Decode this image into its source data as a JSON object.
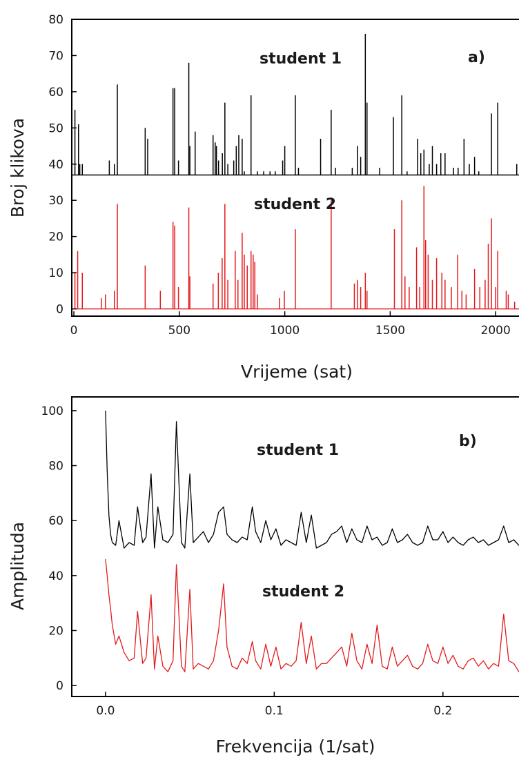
{
  "colors": {
    "student1": "#000000",
    "student2": "#e31a1c",
    "axis": "#000000"
  },
  "chart_data": [
    {
      "type": "bar",
      "panel_label": "a)",
      "xlabel": "Vrijeme (sat)",
      "ylabel": "Broj klikova",
      "xlim": [
        -10,
        2150
      ],
      "ylim": [
        -2,
        80
      ],
      "xticks": [
        0,
        500,
        1000,
        1500,
        2000
      ],
      "yticks": [
        0,
        10,
        20,
        30,
        40,
        50,
        60,
        70,
        80
      ],
      "grid": false,
      "series": [
        {
          "name": "student 1",
          "color": "#000000",
          "baseline": 37,
          "x": [
            5,
            22,
            28,
            40,
            168,
            192,
            206,
            338,
            350,
            470,
            478,
            496,
            545,
            550,
            575,
            660,
            670,
            676,
            686,
            704,
            716,
            730,
            758,
            770,
            782,
            798,
            808,
            840,
            870,
            900,
            930,
            955,
            990,
            1000,
            1050,
            1065,
            1170,
            1220,
            1240,
            1320,
            1345,
            1360,
            1382,
            1390,
            1450,
            1515,
            1555,
            1580,
            1630,
            1645,
            1660,
            1685,
            1700,
            1720,
            1740,
            1760,
            1800,
            1822,
            1850,
            1875,
            1900,
            1920,
            1980,
            2010,
            2100
          ],
          "values": [
            55,
            51,
            40,
            40,
            41,
            40,
            62,
            50,
            47,
            61,
            61,
            41,
            68,
            45,
            49,
            48,
            46,
            45,
            41,
            43,
            57,
            40,
            41,
            45,
            48,
            47,
            38,
            59,
            38,
            38,
            38,
            38,
            41,
            45,
            59,
            39,
            47,
            55,
            39,
            39,
            45,
            42,
            76,
            57,
            39,
            53,
            59,
            38,
            47,
            43,
            44,
            40,
            45,
            40,
            43,
            43,
            39,
            39,
            47,
            40,
            42,
            38,
            54,
            57,
            40
          ]
        },
        {
          "name": "student 2",
          "color": "#e31a1c",
          "baseline": 0,
          "x": [
            5,
            18,
            40,
            130,
            150,
            192,
            206,
            338,
            410,
            470,
            478,
            496,
            545,
            550,
            660,
            685,
            703,
            716,
            730,
            765,
            778,
            798,
            808,
            822,
            840,
            850,
            858,
            870,
            975,
            998,
            1050,
            1220,
            1330,
            1345,
            1360,
            1382,
            1390,
            1520,
            1555,
            1570,
            1590,
            1625,
            1640,
            1660,
            1668,
            1680,
            1700,
            1720,
            1745,
            1760,
            1790,
            1820,
            1840,
            1860,
            1900,
            1925,
            1950,
            1965,
            1980,
            2000,
            2010,
            2050,
            2060,
            2090,
            2120
          ],
          "values": [
            10,
            16,
            10,
            3,
            4,
            5,
            29,
            12,
            5,
            24,
            23,
            6,
            28,
            9,
            7,
            10,
            14,
            29,
            8,
            16,
            8,
            21,
            15,
            12,
            16,
            15,
            13,
            4,
            3,
            5,
            22,
            30,
            7,
            8,
            6,
            10,
            5,
            22,
            30,
            9,
            6,
            17,
            6,
            34,
            19,
            15,
            8,
            14,
            10,
            8,
            6,
            15,
            5,
            4,
            11,
            6,
            8,
            18,
            25,
            6,
            16,
            5,
            4,
            2,
            6
          ]
        }
      ],
      "annotations": [
        "student 1",
        "student 2"
      ]
    },
    {
      "type": "line",
      "panel_label": "b)",
      "xlabel": "Frekvencija (1/sat)",
      "ylabel": "Amplituda",
      "xlim": [
        -0.02,
        0.25
      ],
      "ylim": [
        -4,
        105
      ],
      "xticks": [
        0.0,
        0.1,
        0.2
      ],
      "xtick_labels": [
        "0.0",
        "0.1",
        "0.2"
      ],
      "yticks": [
        0,
        20,
        40,
        60,
        80,
        100
      ],
      "grid": false,
      "series": [
        {
          "name": "student 1",
          "color": "#000000",
          "x": [
            0.0,
            0.001,
            0.002,
            0.003,
            0.004,
            0.006,
            0.008,
            0.011,
            0.014,
            0.017,
            0.019,
            0.022,
            0.024,
            0.027,
            0.029,
            0.031,
            0.034,
            0.037,
            0.04,
            0.042,
            0.045,
            0.047,
            0.05,
            0.052,
            0.055,
            0.058,
            0.061,
            0.064,
            0.067,
            0.07,
            0.072,
            0.075,
            0.078,
            0.081,
            0.084,
            0.087,
            0.089,
            0.092,
            0.095,
            0.098,
            0.101,
            0.104,
            0.107,
            0.11,
            0.113,
            0.116,
            0.119,
            0.122,
            0.125,
            0.128,
            0.131,
            0.134,
            0.137,
            0.14,
            0.143,
            0.146,
            0.149,
            0.152,
            0.155,
            0.158,
            0.161,
            0.164,
            0.167,
            0.17,
            0.173,
            0.176,
            0.179,
            0.182,
            0.185,
            0.188,
            0.191,
            0.194,
            0.197,
            0.2,
            0.203,
            0.206,
            0.209,
            0.212,
            0.215,
            0.218,
            0.221,
            0.224,
            0.227,
            0.23,
            0.233,
            0.236,
            0.239,
            0.242,
            0.245,
            0.248
          ],
          "y": [
            100,
            78,
            62,
            55,
            52,
            51,
            60,
            50,
            52,
            51,
            65,
            52,
            54,
            77,
            50,
            65,
            53,
            52,
            55,
            96,
            52,
            50,
            77,
            52,
            54,
            56,
            52,
            55,
            63,
            65,
            55,
            53,
            52,
            54,
            53,
            65,
            56,
            52,
            60,
            53,
            57,
            51,
            53,
            52,
            51,
            63,
            52,
            62,
            50,
            51,
            52,
            55,
            56,
            58,
            52,
            57,
            53,
            52,
            58,
            53,
            54,
            51,
            52,
            57,
            52,
            53,
            55,
            52,
            51,
            52,
            58,
            53,
            53,
            56,
            52,
            54,
            52,
            51,
            53,
            54,
            52,
            53,
            51,
            52,
            53,
            58,
            52,
            53,
            51,
            52
          ]
        },
        {
          "name": "student 2",
          "color": "#e31a1c",
          "x": [
            0.0,
            0.001,
            0.002,
            0.003,
            0.004,
            0.006,
            0.008,
            0.011,
            0.014,
            0.017,
            0.019,
            0.022,
            0.024,
            0.027,
            0.029,
            0.031,
            0.034,
            0.037,
            0.04,
            0.042,
            0.045,
            0.047,
            0.05,
            0.052,
            0.055,
            0.058,
            0.061,
            0.064,
            0.067,
            0.07,
            0.072,
            0.075,
            0.078,
            0.081,
            0.084,
            0.087,
            0.089,
            0.092,
            0.095,
            0.098,
            0.101,
            0.104,
            0.107,
            0.11,
            0.113,
            0.116,
            0.119,
            0.122,
            0.125,
            0.128,
            0.131,
            0.134,
            0.137,
            0.14,
            0.143,
            0.146,
            0.149,
            0.152,
            0.155,
            0.158,
            0.161,
            0.164,
            0.167,
            0.17,
            0.173,
            0.176,
            0.179,
            0.182,
            0.185,
            0.188,
            0.191,
            0.194,
            0.197,
            0.2,
            0.203,
            0.206,
            0.209,
            0.212,
            0.215,
            0.218,
            0.221,
            0.224,
            0.227,
            0.23,
            0.233,
            0.236,
            0.239,
            0.242,
            0.245,
            0.248
          ],
          "y": [
            46,
            40,
            33,
            28,
            22,
            15,
            18,
            12,
            9,
            10,
            27,
            8,
            10,
            33,
            6,
            18,
            7,
            5,
            9,
            44,
            7,
            5,
            35,
            6,
            8,
            7,
            6,
            9,
            20,
            37,
            14,
            7,
            6,
            10,
            8,
            16,
            9,
            6,
            15,
            7,
            14,
            6,
            8,
            7,
            9,
            23,
            8,
            18,
            6,
            8,
            8,
            10,
            12,
            14,
            7,
            19,
            9,
            6,
            15,
            8,
            22,
            7,
            6,
            14,
            7,
            9,
            11,
            7,
            6,
            8,
            15,
            9,
            8,
            14,
            8,
            11,
            7,
            6,
            9,
            10,
            7,
            9,
            6,
            8,
            7,
            26,
            9,
            8,
            5,
            6
          ]
        }
      ],
      "annotations": [
        "student 1",
        "student 2"
      ]
    }
  ]
}
